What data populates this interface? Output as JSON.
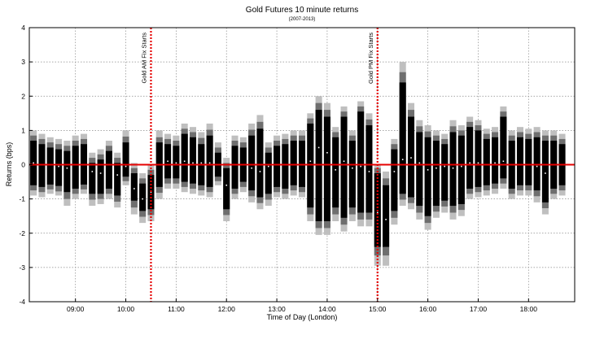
{
  "chart_data": {
    "type": "box",
    "title": "Gold Futures 10 minute returns",
    "subtitle": "(2007-2013)",
    "xlabel": "Time of Day (London)",
    "ylabel": "Returns (bps)",
    "xlim": [
      "08:10",
      "18:50"
    ],
    "ylim": [
      -4,
      4
    ],
    "yticks": [
      -4,
      -3,
      -2,
      -1,
      0,
      1,
      2,
      3,
      4
    ],
    "xticks": [
      "09:00",
      "10:00",
      "11:00",
      "12:00",
      "13:00",
      "14:00",
      "15:00",
      "16:00",
      "17:00",
      "18:00"
    ],
    "grid": true,
    "zero_line_color": "#e60000",
    "colors": {
      "core": "#000000",
      "mid": "#6e6e6e",
      "outer": "#bfbfbf",
      "median": "#ffffff"
    },
    "vlines": [
      {
        "x": "10:30",
        "label": "Gold AM Fix Starts",
        "color": "#e60000"
      },
      {
        "x": "15:00",
        "label": "Gold PM Fix Starts",
        "color": "#e60000"
      }
    ],
    "bands_note": "per bar: outer range [lo3, hi3], middle [lo2, hi2], core [lo1, hi1], median m",
    "bars": [
      {
        "x": "08:10",
        "lo3": -0.9,
        "lo2": -0.75,
        "lo1": -0.6,
        "m": 0.05,
        "hi1": 0.7,
        "hi2": 0.85,
        "hi3": 1.0
      },
      {
        "x": "08:20",
        "lo3": -0.95,
        "lo2": -0.8,
        "lo1": -0.65,
        "m": 0.0,
        "hi1": 0.6,
        "hi2": 0.75,
        "hi3": 0.9
      },
      {
        "x": "08:30",
        "lo3": -0.85,
        "lo2": -0.72,
        "lo1": -0.58,
        "m": 0.0,
        "hi1": 0.5,
        "hi2": 0.65,
        "hi3": 0.8
      },
      {
        "x": "08:40",
        "lo3": -0.9,
        "lo2": -0.78,
        "lo1": -0.62,
        "m": -0.05,
        "hi1": 0.45,
        "hi2": 0.6,
        "hi3": 0.75
      },
      {
        "x": "08:50",
        "lo3": -1.2,
        "lo2": -1.0,
        "lo1": -0.8,
        "m": -0.1,
        "hi1": 0.4,
        "hi2": 0.55,
        "hi3": 0.7
      },
      {
        "x": "09:00",
        "lo3": -1.0,
        "lo2": -0.85,
        "lo1": -0.7,
        "m": 0.0,
        "hi1": 0.55,
        "hi2": 0.7,
        "hi3": 0.85
      },
      {
        "x": "09:10",
        "lo3": -0.85,
        "lo2": -0.72,
        "lo1": -0.58,
        "m": 0.0,
        "hi1": 0.6,
        "hi2": 0.75,
        "hi3": 0.9
      },
      {
        "x": "09:20",
        "lo3": -1.2,
        "lo2": -1.02,
        "lo1": -0.85,
        "m": -0.2,
        "hi1": 0.05,
        "hi2": 0.2,
        "hi3": 0.35
      },
      {
        "x": "09:30",
        "lo3": -1.15,
        "lo2": -1.0,
        "lo1": -0.85,
        "m": -0.25,
        "hi1": 0.15,
        "hi2": 0.3,
        "hi3": 0.45
      },
      {
        "x": "09:40",
        "lo3": -1.0,
        "lo2": -0.85,
        "lo1": -0.7,
        "m": 0.0,
        "hi1": 0.4,
        "hi2": 0.55,
        "hi3": 0.7
      },
      {
        "x": "09:50",
        "lo3": -1.25,
        "lo2": -1.08,
        "lo1": -0.9,
        "m": -0.3,
        "hi1": 0.05,
        "hi2": 0.2,
        "hi3": 0.35
      },
      {
        "x": "10:00",
        "lo3": -0.6,
        "lo2": -0.48,
        "lo1": -0.35,
        "m": -0.05,
        "hi1": 0.65,
        "hi2": 0.82,
        "hi3": 1.0
      },
      {
        "x": "10:10",
        "lo3": -1.45,
        "lo2": -1.25,
        "lo1": -1.05,
        "m": -0.7,
        "hi1": -0.25,
        "hi2": -0.1,
        "hi3": 0.05
      },
      {
        "x": "10:20",
        "lo3": -1.7,
        "lo2": -1.52,
        "lo1": -1.35,
        "m": -1.0,
        "hi1": -0.55,
        "hi2": -0.4,
        "hi3": -0.25
      },
      {
        "x": "10:30",
        "lo3": -1.65,
        "lo2": -1.47,
        "lo1": -1.3,
        "m": -0.8,
        "hi1": -0.3,
        "hi2": -0.15,
        "hi3": 0.0
      },
      {
        "x": "10:40",
        "lo3": -1.0,
        "lo2": -0.82,
        "lo1": -0.65,
        "m": 0.0,
        "hi1": 0.65,
        "hi2": 0.8,
        "hi3": 1.0
      },
      {
        "x": "10:50",
        "lo3": -0.7,
        "lo2": -0.55,
        "lo1": -0.4,
        "m": 0.1,
        "hi1": 0.6,
        "hi2": 0.75,
        "hi3": 0.9
      },
      {
        "x": "11:00",
        "lo3": -0.7,
        "lo2": -0.55,
        "lo1": -0.4,
        "m": 0.05,
        "hi1": 0.55,
        "hi2": 0.7,
        "hi3": 0.85
      },
      {
        "x": "11:10",
        "lo3": -0.8,
        "lo2": -0.65,
        "lo1": -0.5,
        "m": 0.1,
        "hi1": 0.9,
        "hi2": 1.05,
        "hi3": 1.2
      },
      {
        "x": "11:20",
        "lo3": -0.85,
        "lo2": -0.7,
        "lo1": -0.55,
        "m": 0.05,
        "hi1": 0.8,
        "hi2": 0.95,
        "hi3": 1.1
      },
      {
        "x": "11:30",
        "lo3": -0.9,
        "lo2": -0.75,
        "lo1": -0.6,
        "m": 0.05,
        "hi1": 0.6,
        "hi2": 0.78,
        "hi3": 0.95
      },
      {
        "x": "11:40",
        "lo3": -0.95,
        "lo2": -0.8,
        "lo1": -0.65,
        "m": 0.05,
        "hi1": 0.85,
        "hi2": 1.02,
        "hi3": 1.2
      },
      {
        "x": "11:50",
        "lo3": -0.6,
        "lo2": -0.48,
        "lo1": -0.35,
        "m": 0.0,
        "hi1": 0.35,
        "hi2": 0.5,
        "hi3": 0.65
      },
      {
        "x": "12:00",
        "lo3": -1.65,
        "lo2": -1.47,
        "lo1": -1.3,
        "m": -0.6,
        "hi1": -0.1,
        "hi2": 0.05,
        "hi3": 0.2
      },
      {
        "x": "12:10",
        "lo3": -1.0,
        "lo2": -0.85,
        "lo1": -0.7,
        "m": 0.0,
        "hi1": 0.55,
        "hi2": 0.7,
        "hi3": 0.85
      },
      {
        "x": "12:20",
        "lo3": -0.8,
        "lo2": -0.65,
        "lo1": -0.5,
        "m": 0.0,
        "hi1": 0.5,
        "hi2": 0.65,
        "hi3": 0.8
      },
      {
        "x": "12:30",
        "lo3": -1.1,
        "lo2": -0.92,
        "lo1": -0.75,
        "m": -0.1,
        "hi1": 0.85,
        "hi2": 1.02,
        "hi3": 1.2
      },
      {
        "x": "12:40",
        "lo3": -1.3,
        "lo2": -1.12,
        "lo1": -0.95,
        "m": -0.2,
        "hi1": 1.05,
        "hi2": 1.25,
        "hi3": 1.45
      },
      {
        "x": "12:50",
        "lo3": -1.2,
        "lo2": -1.02,
        "lo1": -0.85,
        "m": -0.05,
        "hi1": 0.35,
        "hi2": 0.5,
        "hi3": 0.65
      },
      {
        "x": "13:00",
        "lo3": -0.95,
        "lo2": -0.8,
        "lo1": -0.65,
        "m": 0.0,
        "hi1": 0.55,
        "hi2": 0.7,
        "hi3": 0.85
      },
      {
        "x": "13:10",
        "lo3": -1.0,
        "lo2": -0.85,
        "lo1": -0.7,
        "m": 0.0,
        "hi1": 0.6,
        "hi2": 0.75,
        "hi3": 0.9
      },
      {
        "x": "13:20",
        "lo3": -0.9,
        "lo2": -0.75,
        "lo1": -0.6,
        "m": 0.0,
        "hi1": 0.7,
        "hi2": 0.85,
        "hi3": 1.0
      },
      {
        "x": "13:30",
        "lo3": -0.95,
        "lo2": -0.8,
        "lo1": -0.65,
        "m": 0.0,
        "hi1": 0.7,
        "hi2": 0.85,
        "hi3": 1.0
      },
      {
        "x": "13:40",
        "lo3": -1.65,
        "lo2": -1.45,
        "lo1": -1.25,
        "m": 0.1,
        "hi1": 1.2,
        "hi2": 1.35,
        "hi3": 1.5
      },
      {
        "x": "13:50",
        "lo3": -2.05,
        "lo2": -1.85,
        "lo1": -1.65,
        "m": 0.5,
        "hi1": 1.6,
        "hi2": 1.8,
        "hi3": 2.0
      },
      {
        "x": "14:00",
        "lo3": -2.05,
        "lo2": -1.85,
        "lo1": -1.65,
        "m": 0.35,
        "hi1": 1.4,
        "hi2": 1.6,
        "hi3": 1.8
      },
      {
        "x": "14:10",
        "lo3": -1.65,
        "lo2": -1.45,
        "lo1": -1.25,
        "m": -0.15,
        "hi1": 0.8,
        "hi2": 0.95,
        "hi3": 1.1
      },
      {
        "x": "14:20",
        "lo3": -1.95,
        "lo2": -1.75,
        "lo1": -1.55,
        "m": 0.1,
        "hi1": 1.4,
        "hi2": 1.55,
        "hi3": 1.7
      },
      {
        "x": "14:30",
        "lo3": -1.65,
        "lo2": -1.45,
        "lo1": -1.25,
        "m": -0.1,
        "hi1": 0.7,
        "hi2": 0.85,
        "hi3": 1.0
      },
      {
        "x": "14:40",
        "lo3": -1.8,
        "lo2": -1.6,
        "lo1": -1.4,
        "m": -0.05,
        "hi1": 1.55,
        "hi2": 1.7,
        "hi3": 1.85
      },
      {
        "x": "14:50",
        "lo3": -1.8,
        "lo2": -1.6,
        "lo1": -1.4,
        "m": -0.2,
        "hi1": 1.15,
        "hi2": 1.32,
        "hi3": 1.5
      },
      {
        "x": "15:00",
        "lo3": -2.95,
        "lo2": -2.65,
        "lo1": -2.4,
        "m": -1.4,
        "hi1": -0.25,
        "hi2": -0.1,
        "hi3": 0.0
      },
      {
        "x": "15:10",
        "lo3": -2.95,
        "lo2": -2.65,
        "lo1": -2.4,
        "m": -1.6,
        "hi1": -0.6,
        "hi2": -0.4,
        "hi3": -0.2
      },
      {
        "x": "15:20",
        "lo3": -1.75,
        "lo2": -1.55,
        "lo1": -1.35,
        "m": -0.2,
        "hi1": 0.45,
        "hi2": 0.6,
        "hi3": 0.75
      },
      {
        "x": "15:30",
        "lo3": -1.2,
        "lo2": -1.02,
        "lo1": -0.85,
        "m": 0.15,
        "hi1": 2.4,
        "hi2": 2.7,
        "hi3": 3.0
      },
      {
        "x": "15:40",
        "lo3": -1.3,
        "lo2": -1.12,
        "lo1": -0.95,
        "m": 0.2,
        "hi1": 1.4,
        "hi2": 1.6,
        "hi3": 1.8
      },
      {
        "x": "15:50",
        "lo3": -1.6,
        "lo2": -1.4,
        "lo1": -1.2,
        "m": 0.05,
        "hi1": 0.95,
        "hi2": 1.12,
        "hi3": 1.3
      },
      {
        "x": "16:00",
        "lo3": -1.9,
        "lo2": -1.7,
        "lo1": -1.5,
        "m": -0.15,
        "hi1": 0.8,
        "hi2": 0.97,
        "hi3": 1.15
      },
      {
        "x": "16:10",
        "lo3": -1.55,
        "lo2": -1.37,
        "lo1": -1.2,
        "m": -0.1,
        "hi1": 0.7,
        "hi2": 0.85,
        "hi3": 1.0
      },
      {
        "x": "16:20",
        "lo3": -1.4,
        "lo2": -1.22,
        "lo1": -1.05,
        "m": -0.05,
        "hi1": 0.6,
        "hi2": 0.75,
        "hi3": 0.9
      },
      {
        "x": "16:30",
        "lo3": -1.6,
        "lo2": -1.4,
        "lo1": -1.2,
        "m": -0.1,
        "hi1": 0.95,
        "hi2": 1.12,
        "hi3": 1.3
      },
      {
        "x": "16:40",
        "lo3": -1.5,
        "lo2": -1.32,
        "lo1": -1.15,
        "m": -0.05,
        "hi1": 0.85,
        "hi2": 1.0,
        "hi3": 1.15
      },
      {
        "x": "16:50",
        "lo3": -1.0,
        "lo2": -0.85,
        "lo1": -0.7,
        "m": 0.05,
        "hi1": 1.1,
        "hi2": 1.25,
        "hi3": 1.4
      },
      {
        "x": "17:00",
        "lo3": -0.95,
        "lo2": -0.8,
        "lo1": -0.65,
        "m": 0.05,
        "hi1": 1.0,
        "hi2": 1.15,
        "hi3": 1.3
      },
      {
        "x": "17:10",
        "lo3": -0.9,
        "lo2": -0.75,
        "lo1": -0.6,
        "m": 0.0,
        "hi1": 0.75,
        "hi2": 0.9,
        "hi3": 1.05
      },
      {
        "x": "17:20",
        "lo3": -0.85,
        "lo2": -0.7,
        "lo1": -0.55,
        "m": 0.05,
        "hi1": 0.8,
        "hi2": 0.95,
        "hi3": 1.1
      },
      {
        "x": "17:30",
        "lo3": -0.7,
        "lo2": -0.55,
        "lo1": -0.4,
        "m": 0.1,
        "hi1": 1.4,
        "hi2": 1.55,
        "hi3": 1.7
      },
      {
        "x": "17:40",
        "lo3": -1.0,
        "lo2": -0.85,
        "lo1": -0.7,
        "m": 0.0,
        "hi1": 0.7,
        "hi2": 0.85,
        "hi3": 1.0
      },
      {
        "x": "17:50",
        "lo3": -0.9,
        "lo2": -0.75,
        "lo1": -0.6,
        "m": 0.0,
        "hi1": 0.8,
        "hi2": 0.95,
        "hi3": 1.1
      },
      {
        "x": "18:00",
        "lo3": -0.9,
        "lo2": -0.75,
        "lo1": -0.6,
        "m": 0.0,
        "hi1": 0.75,
        "hi2": 0.9,
        "hi3": 1.05
      },
      {
        "x": "18:10",
        "lo3": -1.1,
        "lo2": -0.92,
        "lo1": -0.75,
        "m": -0.05,
        "hi1": 0.8,
        "hi2": 0.95,
        "hi3": 1.1
      },
      {
        "x": "18:20",
        "lo3": -1.45,
        "lo2": -1.27,
        "lo1": -1.1,
        "m": -0.25,
        "hi1": 0.7,
        "hi2": 0.85,
        "hi3": 1.0
      },
      {
        "x": "18:30",
        "lo3": -1.0,
        "lo2": -0.85,
        "lo1": -0.7,
        "m": 0.0,
        "hi1": 0.7,
        "hi2": 0.85,
        "hi3": 1.0
      },
      {
        "x": "18:40",
        "lo3": -0.9,
        "lo2": -0.75,
        "lo1": -0.6,
        "m": 0.0,
        "hi1": 0.6,
        "hi2": 0.75,
        "hi3": 0.9
      }
    ]
  }
}
